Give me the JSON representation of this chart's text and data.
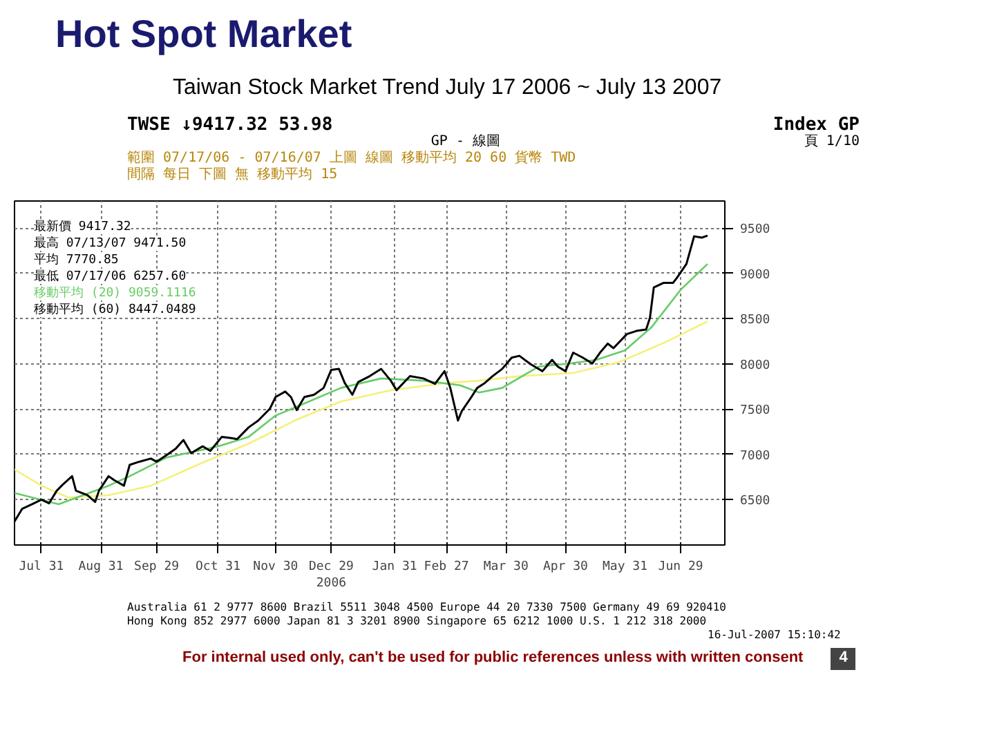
{
  "chart_data": {
    "type": "line",
    "title": "Hot Spot Market",
    "subtitle": "Taiwan Stock Market Trend July 17 2006 ~ July 13 2007",
    "xlim": [
      "2006-07-17",
      "2007-07-22"
    ],
    "ylim": [
      6000,
      9800
    ],
    "xticks": [
      {
        "value": "2006-07-31",
        "label": "Jul 31"
      },
      {
        "value": "2006-08-31",
        "label": "Aug 31"
      },
      {
        "value": "2006-09-29",
        "label": "Sep 29"
      },
      {
        "value": "2006-10-31",
        "label": "Oct 31"
      },
      {
        "value": "2006-11-30",
        "label": "Nov 30"
      },
      {
        "value": "2006-12-29",
        "label": "Dec 29\n2006"
      },
      {
        "value": "2007-01-31",
        "label": "Jan 31"
      },
      {
        "value": "2007-02-27",
        "label": "Feb 27"
      },
      {
        "value": "2007-03-30",
        "label": "Mar 30"
      },
      {
        "value": "2007-04-30",
        "label": "Apr 30"
      },
      {
        "value": "2007-05-31",
        "label": "May 31"
      },
      {
        "value": "2007-06-29",
        "label": "Jun 29"
      }
    ],
    "yticks": [
      6500,
      7000,
      7500,
      8000,
      8500,
      9000,
      9500
    ],
    "grid": true,
    "series": [
      {
        "color": "#000000",
        "x": [
          "2006-07-17",
          "2006-07-21",
          "2006-07-26",
          "2006-07-31",
          "2006-08-04",
          "2006-08-08",
          "2006-08-11",
          "2006-08-16",
          "2006-08-18",
          "2006-08-24",
          "2006-08-28",
          "2006-08-30",
          "2006-09-04",
          "2006-09-07",
          "2006-09-12",
          "2006-09-15",
          "2006-09-20",
          "2006-09-26",
          "2006-09-29",
          "2006-10-04",
          "2006-10-09",
          "2006-10-13",
          "2006-10-17",
          "2006-10-23",
          "2006-10-27",
          "2006-11-02",
          "2006-11-07",
          "2006-11-10",
          "2006-11-16",
          "2006-11-21",
          "2006-11-27",
          "2006-11-30",
          "2006-12-05",
          "2006-12-08",
          "2006-12-11",
          "2006-12-15",
          "2006-12-20",
          "2006-12-25",
          "2006-12-29",
          "2007-01-02",
          "2007-01-05",
          "2007-01-09",
          "2007-01-12",
          "2007-01-18",
          "2007-01-24",
          "2007-01-29",
          "2007-02-01",
          "2007-02-08",
          "2007-02-15",
          "2007-02-21",
          "2007-02-26",
          "2007-03-01",
          "2007-03-05",
          "2007-03-07",
          "2007-03-12",
          "2007-03-15",
          "2007-03-19",
          "2007-03-23",
          "2007-03-28",
          "2007-04-02",
          "2007-04-06",
          "2007-04-12",
          "2007-04-18",
          "2007-04-23",
          "2007-04-26",
          "2007-04-30",
          "2007-05-04",
          "2007-05-09",
          "2007-05-14",
          "2007-05-18",
          "2007-05-22",
          "2007-05-25",
          "2007-06-01",
          "2007-06-06",
          "2007-06-11",
          "2007-06-13",
          "2007-06-15",
          "2007-06-20",
          "2007-06-25",
          "2007-06-27",
          "2007-07-02",
          "2007-07-06",
          "2007-07-10",
          "2007-07-13"
        ],
        "values": [
          6260,
          6400,
          6450,
          6500,
          6460,
          6600,
          6665,
          6760,
          6600,
          6550,
          6475,
          6600,
          6760,
          6715,
          6655,
          6885,
          6920,
          6955,
          6920,
          6990,
          7065,
          7160,
          7015,
          7090,
          7040,
          7195,
          7180,
          7170,
          7300,
          7375,
          7505,
          7635,
          7695,
          7635,
          7490,
          7635,
          7660,
          7735,
          7935,
          7945,
          7790,
          7660,
          7800,
          7865,
          7945,
          7815,
          7710,
          7865,
          7840,
          7780,
          7920,
          7735,
          7375,
          7480,
          7635,
          7735,
          7790,
          7865,
          7945,
          8070,
          8090,
          7995,
          7920,
          8045,
          7970,
          7920,
          8125,
          8070,
          8005,
          8125,
          8225,
          8175,
          8330,
          8365,
          8380,
          8510,
          8845,
          8895,
          8895,
          8950,
          9105,
          9410,
          9395,
          9417
        ]
      },
      {
        "color": "#66cc66",
        "x": [
          "2006-07-17",
          "2006-08-09",
          "2006-09-04",
          "2006-09-15",
          "2006-10-04",
          "2006-10-31",
          "2006-11-16",
          "2006-11-30",
          "2006-12-14",
          "2007-01-03",
          "2007-01-24",
          "2007-02-15",
          "2007-03-06",
          "2007-03-16",
          "2007-03-28",
          "2007-04-16",
          "2007-05-02",
          "2007-05-16",
          "2007-05-31",
          "2007-06-14",
          "2007-06-29",
          "2007-07-13"
        ],
        "values": [
          6575,
          6450,
          6655,
          6760,
          6965,
          7090,
          7195,
          7430,
          7555,
          7735,
          7840,
          7815,
          7765,
          7685,
          7735,
          7970,
          8005,
          8045,
          8150,
          8410,
          8820,
          9105
        ]
      },
      {
        "color": "#f5f07a",
        "x": [
          "2006-07-17",
          "2006-07-31",
          "2006-08-14",
          "2006-09-04",
          "2006-09-26",
          "2006-10-23",
          "2006-11-16",
          "2006-12-10",
          "2007-01-03",
          "2007-01-29",
          "2007-02-27",
          "2007-03-16",
          "2007-04-06",
          "2007-05-04",
          "2007-05-28",
          "2007-06-22",
          "2007-07-13"
        ],
        "values": [
          6835,
          6655,
          6525,
          6550,
          6655,
          6910,
          7120,
          7375,
          7585,
          7710,
          7790,
          7815,
          7865,
          7900,
          8020,
          8250,
          8470
        ]
      }
    ],
    "annotations": [
      "TWSE ↓9417.32   53.98",
      "Index GP",
      "GP - 線圖",
      "頁 1/10",
      "範圍 07/17/06 - 07/16/07    上圖 線圖    移動平均 20 60    貨幣 TWD",
      "間隔 每日    下圖 無    移動平均 15",
      "最新價 9417.32",
      "最高 07/13/07 9471.50",
      "平均 7770.85",
      "最低 07/17/06 6257.60",
      "移動平均 (20) 9059.1116",
      "移動平均 (60) 8447.0489",
      "Australia 61 2 9777 8600   Brazil 5511 3048 4500   Europe 44 20 7330 7500   Germany 49 69 920410",
      "Hong Kong 852 2977 6000   Japan 81 3 3201 8900   Singapore 65 6212 1000   U.S. 1 212 318 2000",
      "16-Jul-2007 15:10:42",
      "For internal used only, can't be used for public references unless with written consent",
      "4"
    ]
  }
}
